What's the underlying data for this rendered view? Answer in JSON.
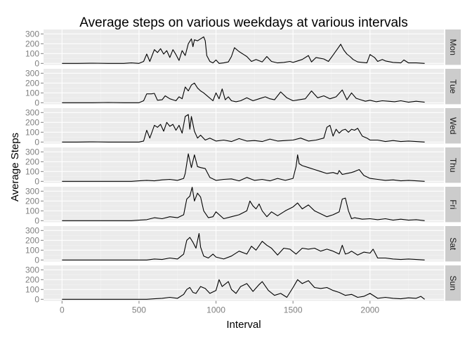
{
  "chart_data": {
    "type": "line",
    "title": "Average steps on various weekdays at various intervals",
    "xlabel": "Interval",
    "ylabel": "Average Steps",
    "xlim": [
      -120,
      2480
    ],
    "ylim": [
      -15,
      345
    ],
    "x_ticks": [
      0,
      500,
      1000,
      1500,
      2000
    ],
    "x_tick_labels": [
      "0",
      "500",
      "1000",
      "1500",
      "2000"
    ],
    "y_ticks": [
      0,
      100,
      200,
      300
    ],
    "y_tick_labels": [
      "0",
      "100",
      "200",
      "300"
    ],
    "grid": true,
    "panel_background": "#ebebeb",
    "strip_background": "#cccccc",
    "line_color": "#000000",
    "series": [
      {
        "name": "Mon",
        "x": [
          0,
          100,
          200,
          300,
          400,
          450,
          500,
          530,
          550,
          570,
          600,
          620,
          640,
          660,
          680,
          700,
          720,
          740,
          760,
          780,
          800,
          820,
          840,
          850,
          860,
          880,
          900,
          920,
          930,
          940,
          960,
          980,
          1000,
          1020,
          1050,
          1080,
          1100,
          1120,
          1150,
          1180,
          1200,
          1230,
          1260,
          1300,
          1330,
          1360,
          1400,
          1440,
          1480,
          1500,
          1530,
          1560,
          1600,
          1620,
          1650,
          1700,
          1730,
          1760,
          1790,
          1810,
          1830,
          1850,
          1870,
          1890,
          1920,
          1950,
          1980,
          2000,
          2030,
          2050,
          2080,
          2100,
          2150,
          2200,
          2220,
          2250,
          2300,
          2355
        ],
        "y": [
          0,
          0,
          2,
          0,
          0,
          5,
          0,
          20,
          95,
          20,
          140,
          110,
          150,
          95,
          130,
          60,
          140,
          90,
          30,
          130,
          80,
          200,
          250,
          170,
          240,
          230,
          250,
          270,
          230,
          80,
          20,
          5,
          35,
          0,
          5,
          15,
          70,
          160,
          120,
          90,
          70,
          20,
          40,
          15,
          70,
          20,
          5,
          10,
          20,
          10,
          25,
          40,
          80,
          15,
          60,
          45,
          20,
          85,
          150,
          195,
          135,
          95,
          70,
          40,
          15,
          10,
          5,
          90,
          60,
          20,
          40,
          25,
          10,
          5,
          35,
          5,
          5,
          0
        ]
      },
      {
        "name": "Tue",
        "x": [
          0,
          100,
          200,
          300,
          400,
          450,
          500,
          530,
          550,
          580,
          600,
          620,
          650,
          670,
          700,
          720,
          740,
          760,
          780,
          800,
          820,
          840,
          860,
          880,
          900,
          920,
          950,
          980,
          1000,
          1020,
          1040,
          1060,
          1080,
          1100,
          1130,
          1160,
          1200,
          1240,
          1280,
          1320,
          1350,
          1380,
          1420,
          1460,
          1500,
          1540,
          1580,
          1620,
          1660,
          1700,
          1740,
          1780,
          1820,
          1850,
          1880,
          1910,
          1940,
          1970,
          2000,
          2040,
          2080,
          2120,
          2160,
          2200,
          2250,
          2300,
          2355
        ],
        "y": [
          0,
          0,
          0,
          2,
          0,
          0,
          0,
          20,
          90,
          90,
          95,
          25,
          30,
          70,
          40,
          30,
          20,
          60,
          40,
          160,
          120,
          180,
          200,
          150,
          120,
          100,
          60,
          20,
          100,
          40,
          140,
          30,
          60,
          20,
          10,
          20,
          50,
          20,
          40,
          60,
          40,
          30,
          110,
          50,
          20,
          30,
          40,
          120,
          50,
          70,
          40,
          60,
          130,
          30,
          100,
          45,
          30,
          15,
          25,
          10,
          20,
          15,
          10,
          20,
          5,
          15,
          5
        ]
      },
      {
        "name": "Wed",
        "x": [
          0,
          100,
          200,
          300,
          400,
          450,
          500,
          530,
          550,
          570,
          600,
          620,
          640,
          660,
          680,
          700,
          720,
          740,
          760,
          780,
          800,
          820,
          830,
          840,
          860,
          880,
          900,
          930,
          960,
          1000,
          1050,
          1100,
          1150,
          1200,
          1250,
          1300,
          1350,
          1400,
          1450,
          1500,
          1550,
          1600,
          1650,
          1700,
          1720,
          1740,
          1760,
          1780,
          1800,
          1820,
          1840,
          1860,
          1880,
          1900,
          1920,
          1950,
          1980,
          2000,
          2050,
          2100,
          2150,
          2200,
          2250,
          2300,
          2355
        ],
        "y": [
          0,
          0,
          2,
          0,
          0,
          0,
          0,
          10,
          120,
          40,
          170,
          150,
          180,
          110,
          200,
          160,
          180,
          120,
          170,
          90,
          260,
          280,
          130,
          260,
          110,
          40,
          70,
          20,
          40,
          10,
          20,
          5,
          35,
          10,
          15,
          5,
          30,
          10,
          15,
          20,
          40,
          10,
          20,
          40,
          150,
          170,
          60,
          130,
          90,
          120,
          130,
          100,
          130,
          120,
          140,
          60,
          40,
          20,
          20,
          5,
          15,
          5,
          10,
          5,
          0
        ]
      },
      {
        "name": "Thu",
        "x": [
          0,
          100,
          200,
          300,
          400,
          450,
          500,
          550,
          600,
          650,
          700,
          750,
          790,
          800,
          820,
          840,
          860,
          880,
          900,
          930,
          960,
          1000,
          1050,
          1100,
          1150,
          1200,
          1250,
          1300,
          1350,
          1400,
          1450,
          1500,
          1520,
          1530,
          1540,
          1560,
          1600,
          1640,
          1680,
          1720,
          1760,
          1790,
          1800,
          1820,
          1850,
          1880,
          1900,
          1930,
          1960,
          2000,
          2050,
          2100,
          2150,
          2200,
          2250,
          2300,
          2355
        ],
        "y": [
          0,
          0,
          0,
          0,
          0,
          0,
          5,
          10,
          5,
          15,
          20,
          10,
          30,
          80,
          280,
          140,
          270,
          150,
          140,
          130,
          40,
          10,
          20,
          25,
          5,
          40,
          10,
          20,
          5,
          30,
          10,
          30,
          150,
          270,
          180,
          160,
          140,
          120,
          100,
          80,
          90,
          75,
          110,
          70,
          80,
          90,
          100,
          120,
          60,
          30,
          20,
          10,
          15,
          5,
          10,
          5,
          0
        ]
      },
      {
        "name": "Fri",
        "x": [
          0,
          100,
          200,
          300,
          400,
          450,
          500,
          550,
          600,
          650,
          700,
          750,
          790,
          810,
          830,
          845,
          860,
          880,
          900,
          920,
          950,
          980,
          1000,
          1050,
          1100,
          1150,
          1200,
          1220,
          1240,
          1260,
          1280,
          1300,
          1330,
          1360,
          1400,
          1450,
          1500,
          1530,
          1560,
          1600,
          1640,
          1680,
          1720,
          1760,
          1800,
          1820,
          1840,
          1860,
          1880,
          1900,
          1950,
          2000,
          2050,
          2100,
          2150,
          2200,
          2250,
          2300,
          2355
        ],
        "y": [
          0,
          0,
          0,
          0,
          0,
          0,
          5,
          10,
          30,
          20,
          40,
          30,
          60,
          220,
          250,
          340,
          200,
          280,
          240,
          100,
          30,
          40,
          90,
          20,
          40,
          60,
          100,
          200,
          150,
          120,
          170,
          100,
          40,
          90,
          50,
          100,
          140,
          180,
          120,
          160,
          100,
          70,
          40,
          60,
          90,
          220,
          230,
          100,
          20,
          30,
          15,
          20,
          10,
          20,
          5,
          15,
          5,
          10,
          0
        ]
      },
      {
        "name": "Sat",
        "x": [
          0,
          100,
          200,
          300,
          400,
          450,
          500,
          550,
          600,
          650,
          700,
          750,
          790,
          810,
          830,
          850,
          870,
          890,
          900,
          920,
          950,
          980,
          1000,
          1050,
          1100,
          1150,
          1200,
          1230,
          1260,
          1300,
          1330,
          1360,
          1400,
          1440,
          1480,
          1520,
          1560,
          1600,
          1640,
          1680,
          1720,
          1760,
          1800,
          1820,
          1840,
          1860,
          1880,
          1920,
          1960,
          2000,
          2020,
          2050,
          2100,
          2150,
          2200,
          2250,
          2300,
          2355
        ],
        "y": [
          0,
          0,
          0,
          0,
          0,
          0,
          0,
          0,
          10,
          5,
          20,
          10,
          60,
          200,
          230,
          180,
          120,
          270,
          130,
          40,
          20,
          60,
          30,
          10,
          40,
          90,
          60,
          140,
          100,
          190,
          150,
          120,
          50,
          120,
          110,
          60,
          120,
          110,
          120,
          90,
          110,
          90,
          60,
          150,
          60,
          70,
          90,
          50,
          80,
          70,
          110,
          20,
          20,
          10,
          5,
          10,
          5,
          0
        ]
      },
      {
        "name": "Sun",
        "x": [
          0,
          100,
          200,
          300,
          400,
          450,
          500,
          550,
          600,
          650,
          700,
          750,
          790,
          810,
          830,
          850,
          870,
          900,
          930,
          960,
          1000,
          1020,
          1040,
          1080,
          1100,
          1130,
          1160,
          1200,
          1240,
          1280,
          1300,
          1340,
          1380,
          1420,
          1460,
          1500,
          1530,
          1560,
          1600,
          1640,
          1680,
          1720,
          1760,
          1800,
          1840,
          1880,
          1920,
          1960,
          2000,
          2050,
          2100,
          2150,
          2200,
          2250,
          2300,
          2330,
          2355
        ],
        "y": [
          0,
          0,
          0,
          0,
          0,
          0,
          0,
          0,
          5,
          10,
          20,
          10,
          50,
          100,
          120,
          70,
          60,
          130,
          110,
          60,
          90,
          200,
          130,
          180,
          100,
          60,
          130,
          160,
          80,
          150,
          180,
          90,
          40,
          60,
          20,
          120,
          200,
          160,
          190,
          120,
          110,
          120,
          90,
          70,
          40,
          50,
          20,
          30,
          60,
          10,
          20,
          10,
          5,
          15,
          10,
          30,
          0
        ]
      }
    ]
  }
}
